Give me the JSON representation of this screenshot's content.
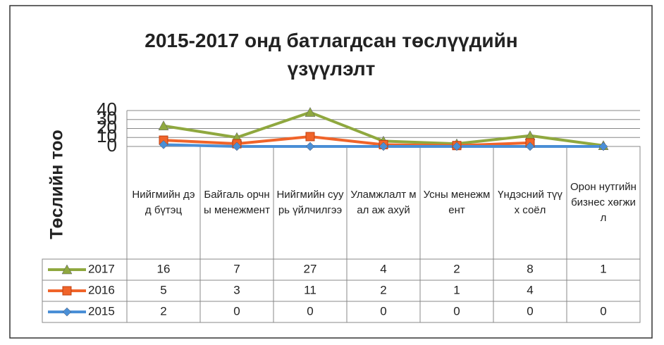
{
  "chart_data": {
    "type": "stacked-line",
    "title": "2015-2017 онд батлагдсан төслүүдийн үзүүлэлт",
    "y_label": "Төслийн тоо",
    "categories": [
      "Нийгмийн дэд бүтэц",
      "Байгаль орчны менежмент",
      "Нийгмийн суурь үйлчилгээ",
      "Уламжлалт мал аж ахуй",
      "Усны менежмент",
      "Үндэсний түүх соёл",
      "Орон нутгийн бизнес хөгжил"
    ],
    "series": [
      {
        "name": "2017",
        "color": "#8fa83f",
        "marker": "triangle",
        "values": [
          16,
          7,
          27,
          4,
          2,
          8,
          1
        ]
      },
      {
        "name": "2016",
        "color": "#f0642a",
        "marker": "square",
        "values": [
          5,
          3,
          11,
          2,
          1,
          4,
          null
        ]
      },
      {
        "name": "2015",
        "color": "#4a8fd6",
        "marker": "diamond",
        "values": [
          2,
          0,
          0,
          0,
          0,
          0,
          0
        ]
      }
    ],
    "ylim": [
      0,
      40
    ],
    "yticks": [
      0,
      10,
      20,
      30,
      40
    ],
    "grid": true,
    "data_table": true
  }
}
